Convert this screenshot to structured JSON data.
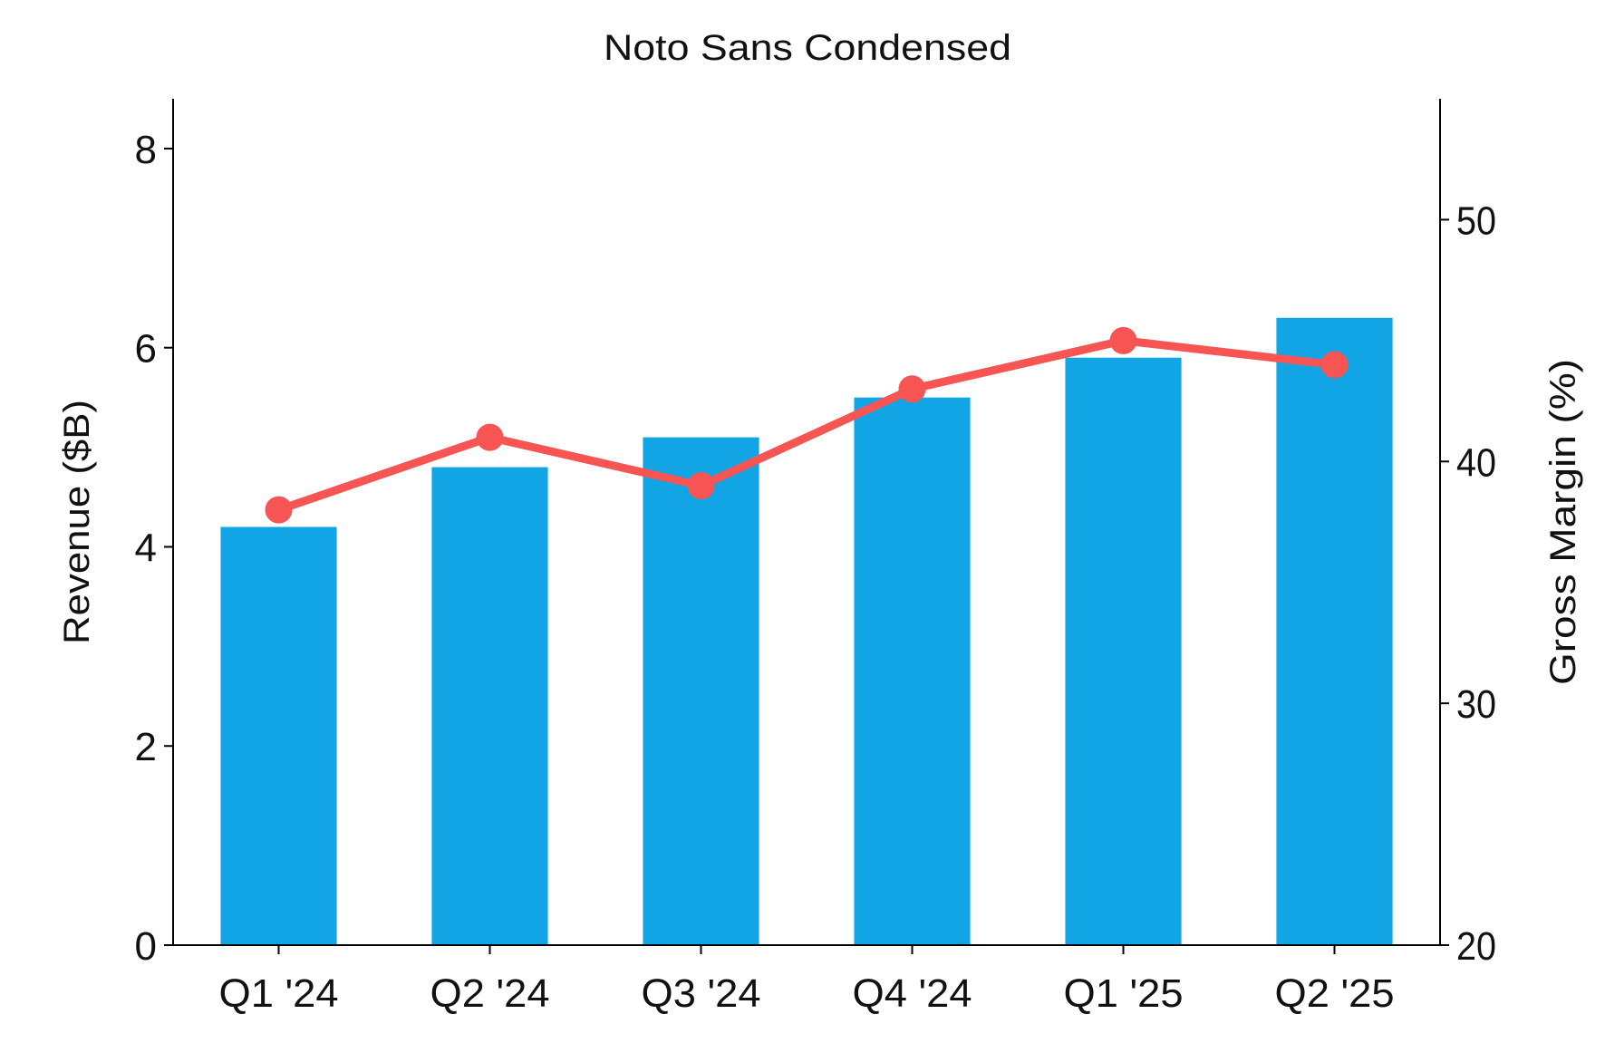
{
  "chart_data": {
    "type": "bar+line",
    "title": "Noto Sans Condensed",
    "categories": [
      "Q1 '24",
      "Q2 '24",
      "Q3 '24",
      "Q4 '24",
      "Q1 '25",
      "Q2 '25"
    ],
    "series": [
      {
        "type": "bar",
        "axis": "left",
        "values": [
          4.2,
          4.8,
          5.1,
          5.5,
          5.9,
          6.3
        ],
        "color": "#11a5e6"
      },
      {
        "type": "line",
        "axis": "right",
        "values": [
          38,
          41,
          39,
          43,
          45,
          44
        ],
        "color": "#f75454",
        "marker": "circle"
      }
    ],
    "ylabel": "Revenue ($B)",
    "y2label": "Gross Margin (%)",
    "ylim": [
      0,
      8.5
    ],
    "y2lim": [
      20,
      55
    ],
    "yticks": [
      0,
      2,
      4,
      6,
      8
    ],
    "y2ticks": [
      20,
      30,
      40,
      50
    ],
    "grid": false,
    "legend": "none"
  }
}
